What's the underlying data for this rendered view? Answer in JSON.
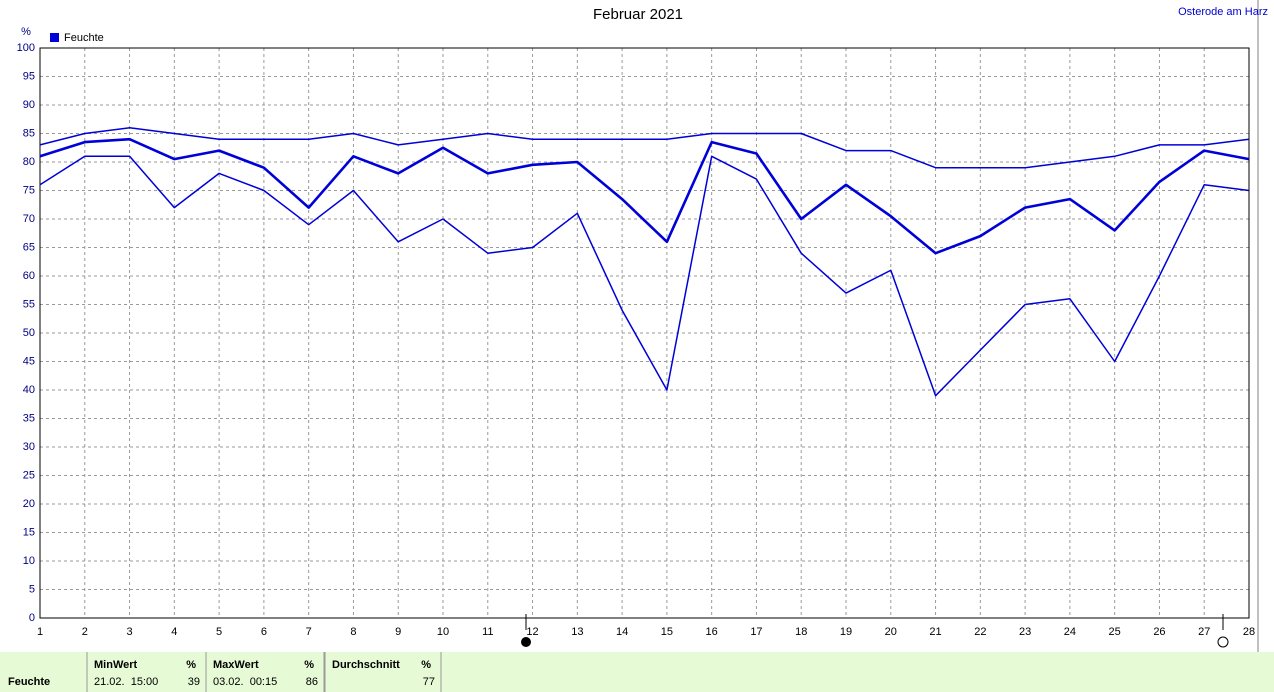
{
  "chart_data": {
    "type": "line",
    "title": "Februar 2021",
    "location": "Osterode am Harz",
    "y_unit": "%",
    "x": [
      1,
      2,
      3,
      4,
      5,
      6,
      7,
      8,
      9,
      10,
      11,
      12,
      13,
      14,
      15,
      16,
      17,
      18,
      19,
      20,
      21,
      22,
      23,
      24,
      25,
      26,
      27,
      28
    ],
    "xlim": [
      1,
      28
    ],
    "xticks": [
      1,
      2,
      3,
      4,
      5,
      6,
      7,
      8,
      9,
      10,
      11,
      12,
      13,
      14,
      15,
      16,
      17,
      18,
      19,
      20,
      21,
      22,
      23,
      24,
      25,
      26,
      27,
      28
    ],
    "ylim": [
      0,
      100
    ],
    "yticks": [
      0,
      5,
      10,
      15,
      20,
      25,
      30,
      35,
      40,
      45,
      50,
      55,
      60,
      65,
      70,
      75,
      80,
      85,
      90,
      95,
      100
    ],
    "grid": true,
    "legend": "top-left",
    "series": [
      {
        "name": "Feuchte",
        "color": "#0000d8",
        "line_width": 2.6,
        "values": [
          81,
          83.5,
          84,
          80.5,
          82,
          79,
          72,
          81,
          78,
          82.5,
          78,
          79.5,
          80,
          73.5,
          66,
          83.5,
          81.5,
          70,
          76,
          70.5,
          64,
          67,
          72,
          73.5,
          68,
          76.5,
          82,
          80.5
        ]
      },
      {
        "color": "#0000d8",
        "line_width": 1.5,
        "values": [
          83,
          85,
          86,
          85,
          84,
          84,
          84,
          85,
          83,
          84,
          85,
          84,
          84,
          84,
          84,
          85,
          85,
          85,
          82,
          82,
          79,
          79,
          79,
          80,
          81,
          83,
          83,
          84
        ]
      },
      {
        "color": "#0000d8",
        "line_width": 1.5,
        "values": [
          76,
          81,
          81,
          72,
          78,
          75,
          69,
          75,
          66,
          70,
          64,
          65,
          71,
          54,
          40,
          81,
          77,
          64,
          57,
          61,
          39,
          47,
          55,
          56,
          45,
          60,
          76,
          75
        ]
      }
    ]
  },
  "summary": {
    "row_label": "Feuchte",
    "columns": [
      {
        "header": "MinWert",
        "unit": "%",
        "time": "21.02.  15:00",
        "value": "39"
      },
      {
        "header": "MaxWert",
        "unit": "%",
        "time": "03.02.  00:15",
        "value": "86"
      },
      {
        "header": "Durchschnitt",
        "unit": "%",
        "value": "77"
      }
    ]
  }
}
